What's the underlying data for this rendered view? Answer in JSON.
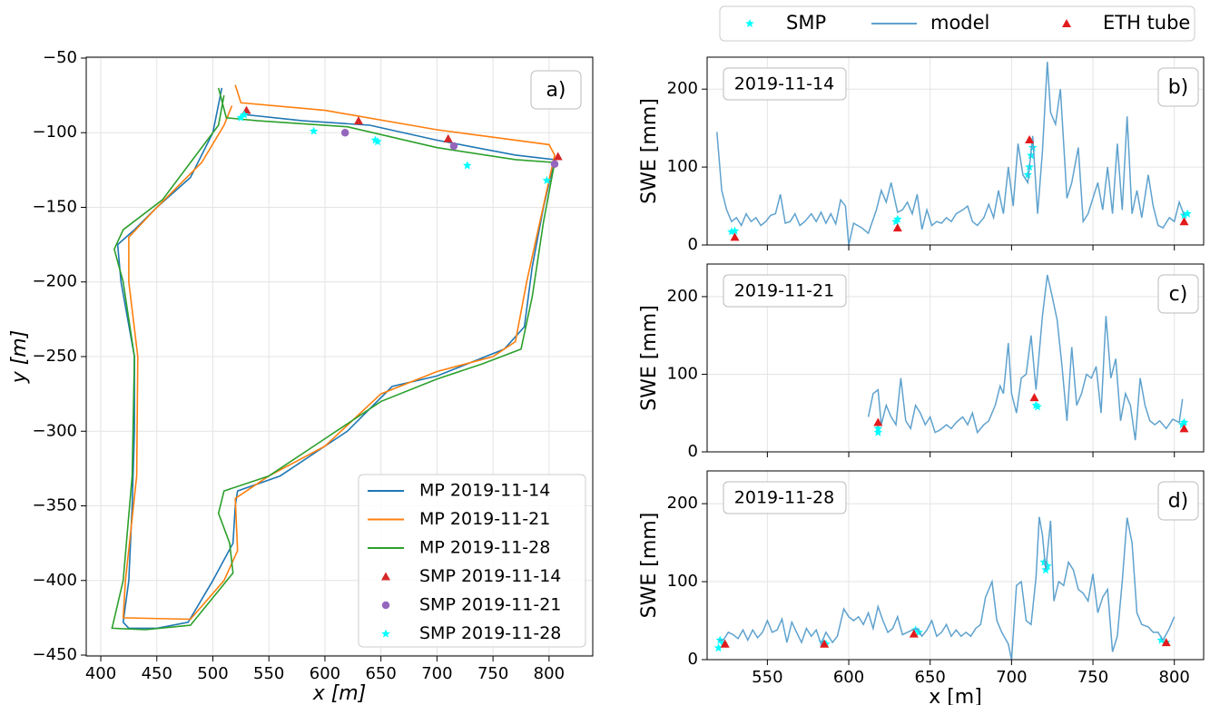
{
  "chart_data": [
    {
      "type": "line",
      "annotation": "a)",
      "xlabel": "x [m]",
      "ylabel": "y [m]",
      "grid": true,
      "legend_position": "lower right",
      "xlim": [
        387,
        839
      ],
      "ylim": [
        -450.6,
        -49.4
      ],
      "xticks": [
        400,
        450,
        500,
        550,
        600,
        650,
        700,
        750,
        800
      ],
      "yticks": [
        {
          "value": -50,
          "label": "−50"
        },
        {
          "value": -100,
          "label": "−100"
        },
        {
          "value": -150,
          "label": "−150"
        },
        {
          "value": -200,
          "label": "−200"
        },
        {
          "value": -250,
          "label": "−250"
        },
        {
          "value": -300,
          "label": "−300"
        },
        {
          "value": -350,
          "label": "−350"
        },
        {
          "value": -400,
          "label": "−400"
        },
        {
          "value": -450,
          "label": "−450"
        }
      ],
      "series": [
        {
          "name": "MP 2019-11-14",
          "color": "#1f77b4",
          "style": "line",
          "x": [
            508,
            500,
            480,
            450,
            430,
            415,
            418,
            430,
            430,
            428,
            425,
            420,
            425,
            450,
            478,
            500,
            518,
            520,
            522,
            560,
            620,
            660,
            700,
            760,
            778,
            785,
            795,
            805,
            770,
            700,
            640,
            580,
            530
          ],
          "values": [
            -70,
            -100,
            -130,
            -150,
            -165,
            -175,
            -200,
            -250,
            -300,
            -350,
            -400,
            -428,
            -432,
            -432,
            -428,
            -400,
            -375,
            -350,
            -340,
            -330,
            -300,
            -270,
            -263,
            -245,
            -230,
            -190,
            -150,
            -118,
            -115,
            -105,
            -95,
            -92,
            -88
          ]
        },
        {
          "name": "MP 2019-11-21",
          "color": "#ff7f0e",
          "style": "line",
          "x": [
            520,
            525,
            600,
            700,
            800,
            805,
            780,
            770,
            750,
            700,
            650,
            600,
            550,
            520,
            522,
            510,
            480,
            420,
            422,
            432,
            433,
            425,
            425,
            450,
            490,
            510,
            517
          ],
          "values": [
            -68,
            -80,
            -85,
            -98,
            -108,
            -115,
            -200,
            -240,
            -250,
            -260,
            -275,
            -310,
            -330,
            -345,
            -380,
            -400,
            -426,
            -425,
            -400,
            -330,
            -250,
            -200,
            -170,
            -150,
            -120,
            -95,
            -82
          ]
        },
        {
          "name": "MP 2019-11-28",
          "color": "#2ca02c",
          "style": "line",
          "x": [
            505,
            512,
            540,
            620,
            700,
            770,
            805,
            795,
            785,
            775,
            740,
            700,
            650,
            600,
            550,
            510,
            505,
            515,
            518,
            480,
            440,
            410,
            420,
            428,
            430,
            420,
            412,
            420,
            455,
            480,
            505,
            510
          ],
          "values": [
            -70,
            -90,
            -92,
            -96,
            -110,
            -118,
            -120,
            -160,
            -210,
            -245,
            -255,
            -265,
            -280,
            -305,
            -330,
            -340,
            -355,
            -375,
            -395,
            -430,
            -433,
            -432,
            -400,
            -330,
            -250,
            -200,
            -178,
            -165,
            -145,
            -120,
            -95,
            -75
          ]
        },
        {
          "name": "SMP 2019-11-14",
          "color": "#d62728",
          "style": "triangle",
          "x": [
            530,
            630,
            710,
            808
          ],
          "values": [
            -85,
            -92,
            -104,
            -116
          ]
        },
        {
          "name": "SMP 2019-11-21",
          "color": "#9467bd",
          "style": "circle",
          "x": [
            618,
            715,
            805
          ],
          "values": [
            -100,
            -109,
            -121
          ]
        },
        {
          "name": "SMP 2019-11-28",
          "color": "#00ffff",
          "style": "star",
          "x": [
            525,
            528,
            590,
            645,
            647,
            727,
            798
          ],
          "values": [
            -90,
            -88,
            -99,
            -105,
            -106,
            -122,
            -132
          ]
        }
      ]
    },
    {
      "type": "line",
      "annotation": "b)",
      "date_label": "2019-11-14",
      "ylabel": "SWE [mm]",
      "grid": true,
      "legend_position": "top outside",
      "show_xtick_labels": false,
      "xlim": [
        513,
        818
      ],
      "ylim": [
        0,
        241
      ],
      "xticks": [
        550,
        600,
        650,
        700,
        750,
        800
      ],
      "yticks": [
        0,
        100,
        200
      ],
      "series": [
        {
          "name": "SMP",
          "color": "#00ffff",
          "style": "star",
          "x": [
            528,
            530,
            629,
            630,
            710,
            711,
            712,
            713,
            806,
            808
          ],
          "values": [
            17,
            18,
            30,
            33,
            90,
            100,
            115,
            125,
            38,
            40
          ]
        },
        {
          "name": "model",
          "color": "#5fa2ce",
          "style": "line",
          "x": [
            519,
            522,
            525,
            528,
            531,
            534,
            537,
            540,
            543,
            546,
            549,
            552,
            555,
            558,
            561,
            564,
            567,
            570,
            573,
            577,
            580,
            583,
            586,
            589,
            592,
            595,
            598,
            600,
            603,
            608,
            612,
            617,
            620,
            623,
            626,
            630,
            633,
            636,
            639,
            642,
            645,
            648,
            651,
            654,
            657,
            660,
            663,
            666,
            670,
            673,
            676,
            679,
            683,
            686,
            689,
            692,
            695,
            698,
            701,
            704,
            707,
            710,
            713,
            716,
            719,
            722,
            724,
            727,
            730,
            734,
            737,
            741,
            744,
            747,
            750,
            753,
            756,
            759,
            762,
            765,
            768,
            771,
            774,
            777,
            780,
            784,
            787,
            790,
            793,
            797,
            800,
            803,
            806
          ],
          "values": [
            145,
            70,
            45,
            30,
            35,
            25,
            40,
            30,
            35,
            25,
            30,
            38,
            40,
            65,
            28,
            30,
            40,
            25,
            30,
            40,
            30,
            42,
            28,
            40,
            27,
            58,
            50,
            0,
            28,
            22,
            15,
            45,
            70,
            55,
            80,
            42,
            45,
            55,
            40,
            65,
            20,
            45,
            25,
            30,
            28,
            35,
            30,
            40,
            45,
            50,
            30,
            25,
            35,
            52,
            35,
            70,
            40,
            100,
            50,
            130,
            90,
            80,
            140,
            40,
            120,
            235,
            170,
            155,
            200,
            60,
            80,
            125,
            30,
            40,
            60,
            80,
            45,
            100,
            40,
            130,
            45,
            165,
            40,
            70,
            35,
            90,
            50,
            25,
            22,
            35,
            30,
            55,
            38
          ]
        },
        {
          "name": "ETH tube",
          "color": "#e31a1c",
          "style": "triangle",
          "x": [
            530,
            630,
            711,
            806
          ],
          "values": [
            10,
            22,
            135,
            30
          ]
        }
      ]
    },
    {
      "type": "line",
      "annotation": "c)",
      "date_label": "2019-11-21",
      "ylabel": "SWE [mm]",
      "grid": true,
      "show_xtick_labels": false,
      "xlim": [
        513,
        818
      ],
      "ylim": [
        0,
        242
      ],
      "xticks": [
        550,
        600,
        650,
        700,
        750,
        800
      ],
      "yticks": [
        0,
        100,
        200
      ],
      "series": [
        {
          "color": "#00ffff",
          "style": "star",
          "x": [
            618,
            618,
            715,
            716,
            805,
            806
          ],
          "values": [
            25,
            30,
            60,
            58,
            35,
            38
          ]
        },
        {
          "color": "#5fa2ce",
          "style": "line",
          "x": [
            612,
            615,
            618,
            620,
            623,
            626,
            629,
            632,
            635,
            638,
            641,
            644,
            647,
            650,
            653,
            656,
            660,
            663,
            666,
            670,
            673,
            676,
            679,
            683,
            686,
            690,
            693,
            695,
            698,
            700,
            703,
            706,
            709,
            712,
            715,
            719,
            722,
            725,
            728,
            731,
            734,
            737,
            740,
            743,
            746,
            749,
            752,
            755,
            758,
            761,
            764,
            767,
            770,
            773,
            776,
            779,
            782,
            785,
            788,
            791,
            795,
            799,
            803,
            805
          ],
          "values": [
            45,
            75,
            80,
            35,
            60,
            45,
            35,
            95,
            40,
            30,
            60,
            50,
            35,
            45,
            25,
            28,
            35,
            30,
            38,
            45,
            35,
            50,
            25,
            35,
            40,
            60,
            85,
            75,
            140,
            75,
            50,
            95,
            100,
            150,
            80,
            175,
            228,
            200,
            170,
            110,
            40,
            135,
            60,
            75,
            100,
            95,
            110,
            50,
            175,
            95,
            120,
            40,
            75,
            60,
            15,
            95,
            60,
            40,
            35,
            40,
            30,
            42,
            38,
            68
          ]
        },
        {
          "color": "#e31a1c",
          "style": "triangle",
          "x": [
            618,
            714,
            806
          ],
          "values": [
            38,
            70,
            30
          ]
        }
      ]
    },
    {
      "type": "line",
      "annotation": "d)",
      "date_label": "2019-11-28",
      "xlabel": "x [m]",
      "ylabel": "SWE [mm]",
      "grid": true,
      "show_xtick_labels": true,
      "xlim": [
        513,
        818
      ],
      "ylim": [
        0,
        242
      ],
      "xticks": [
        550,
        600,
        650,
        700,
        750,
        800
      ],
      "yticks": [
        0,
        100,
        200
      ],
      "series": [
        {
          "color": "#00ffff",
          "style": "star",
          "x": [
            520,
            521,
            523,
            584,
            586,
            641,
            643,
            720,
            721,
            722,
            792,
            795
          ],
          "values": [
            15,
            25,
            20,
            22,
            20,
            38,
            35,
            125,
            115,
            120,
            25,
            22
          ]
        },
        {
          "color": "#5fa2ce",
          "style": "line",
          "x": [
            520,
            523,
            526,
            529,
            532,
            535,
            538,
            541,
            544,
            547,
            550,
            553,
            556,
            559,
            562,
            565,
            568,
            571,
            574,
            577,
            580,
            583,
            586,
            590,
            593,
            597,
            600,
            603,
            606,
            609,
            612,
            615,
            618,
            621,
            624,
            627,
            630,
            633,
            636,
            639,
            642,
            645,
            648,
            651,
            654,
            657,
            660,
            663,
            666,
            669,
            672,
            675,
            678,
            681,
            684,
            688,
            691,
            694,
            698,
            700,
            703,
            706,
            709,
            712,
            715,
            717,
            719,
            721,
            724,
            726,
            729,
            732,
            735,
            738,
            741,
            744,
            747,
            750,
            753,
            756,
            759,
            762,
            765,
            768,
            771,
            774,
            777,
            780,
            784,
            787,
            790,
            793,
            797,
            800
          ],
          "values": [
            25,
            25,
            35,
            32,
            27,
            38,
            25,
            38,
            28,
            35,
            50,
            35,
            38,
            52,
            22,
            48,
            35,
            22,
            40,
            30,
            38,
            20,
            35,
            22,
            30,
            65,
            55,
            50,
            55,
            45,
            60,
            40,
            68,
            50,
            35,
            40,
            55,
            32,
            35,
            38,
            40,
            30,
            38,
            50,
            30,
            35,
            45,
            30,
            38,
            30,
            35,
            30,
            40,
            45,
            80,
            100,
            50,
            35,
            20,
            0,
            95,
            100,
            50,
            45,
            105,
            183,
            160,
            115,
            178,
            75,
            100,
            95,
            125,
            115,
            90,
            85,
            75,
            110,
            60,
            80,
            90,
            10,
            30,
            100,
            182,
            150,
            60,
            45,
            42,
            35,
            35,
            25,
            40,
            55
          ]
        },
        {
          "color": "#e31a1c",
          "style": "triangle",
          "x": [
            524,
            585,
            640,
            795
          ],
          "values": [
            20,
            20,
            33,
            22
          ]
        }
      ]
    }
  ]
}
